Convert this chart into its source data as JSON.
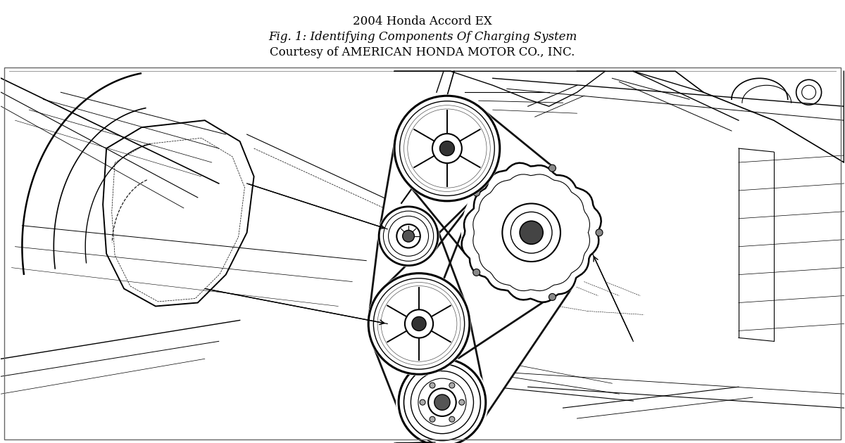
{
  "title_line1": "2004 Honda Accord EX",
  "title_line2": "Fig. 1: Identifying Components Of Charging System",
  "title_line3": "Courtesy of AMERICAN HONDA MOTOR CO., INC.",
  "bg_color": "#ffffff",
  "lc": "#000000",
  "fig_width": 12.0,
  "fig_height": 6.3,
  "dpi": 100,
  "title_fs": 12,
  "sub_fs": 12,
  "credit_fs": 12
}
